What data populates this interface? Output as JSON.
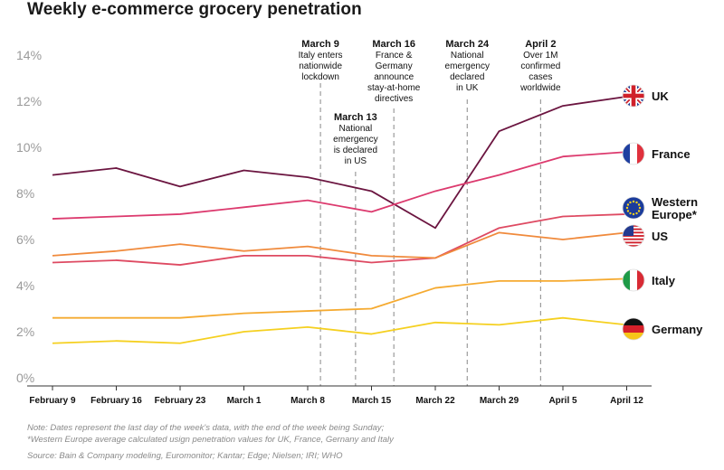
{
  "title": "Weekly e-commerce grocery penetration",
  "notes": {
    "line1": "Note: Dates represent the last day of the week's data, with the end of the week being Sunday;",
    "line2": "*Western Europe average calculated usign penetration values for UK, France, Gernany and Italy",
    "source": "Source: Bain & Company modeling, Euromonitor; Kantar; Edge; Nielsen; IRI; WHO"
  },
  "chart_data": {
    "type": "line",
    "title": "Weekly e-commerce grocery penetration",
    "x": [
      "February 9",
      "February 16",
      "February 23",
      "March 1",
      "March 8",
      "March 15",
      "March 22",
      "March 29",
      "April 5",
      "April 12"
    ],
    "y_ticks": [
      "0%",
      "2%",
      "4%",
      "6%",
      "8%",
      "10%",
      "12%",
      "14%"
    ],
    "ylim": [
      0,
      14
    ],
    "grid": false,
    "series": [
      {
        "name": "UK",
        "color": "#6b1540",
        "flag": "uk-flag-icon",
        "values": [
          8.8,
          9.1,
          8.3,
          9.0,
          8.7,
          8.1,
          6.5,
          10.7,
          11.8,
          12.2
        ]
      },
      {
        "name": "France",
        "color": "#dc3a6e",
        "flag": "france-flag-icon",
        "values": [
          6.9,
          7.0,
          7.1,
          7.4,
          7.7,
          7.2,
          8.1,
          8.8,
          9.6,
          9.8
        ]
      },
      {
        "name": "Western Europe*",
        "color": "#de4a62",
        "flag": "eu-flag-icon",
        "values": [
          5.0,
          5.1,
          4.9,
          5.3,
          5.3,
          5.0,
          5.2,
          6.5,
          7.0,
          7.1
        ]
      },
      {
        "name": "US",
        "color": "#f08a3c",
        "flag": "us-flag-icon",
        "values": [
          5.3,
          5.5,
          5.8,
          5.5,
          5.7,
          5.3,
          5.2,
          6.3,
          6.0,
          6.3
        ]
      },
      {
        "name": "Italy",
        "color": "#f5aa30",
        "flag": "italy-flag-icon",
        "values": [
          2.6,
          2.6,
          2.6,
          2.8,
          2.9,
          3.0,
          3.9,
          4.2,
          4.2,
          4.3
        ]
      },
      {
        "name": "Germany",
        "color": "#f5d020",
        "flag": "germany-flag-icon",
        "values": [
          1.5,
          1.6,
          1.5,
          2.0,
          2.2,
          1.9,
          2.4,
          2.3,
          2.6,
          2.3
        ]
      }
    ],
    "annotations": [
      {
        "title": "March 9",
        "lines": [
          "Italy enters",
          "nationwide",
          "lockdown"
        ],
        "x_date": "March 9"
      },
      {
        "title": "March 13",
        "lines": [
          "National",
          "emergency",
          "is declared",
          "in US"
        ],
        "x_date": "March 13"
      },
      {
        "title": "March 16",
        "lines": [
          "France &",
          "Germany",
          "announce",
          "stay-at-home",
          "directives"
        ],
        "x_date": "March 16"
      },
      {
        "title": "March 24",
        "lines": [
          "National",
          "emergency",
          "declared",
          "in UK"
        ],
        "x_date": "March 24"
      },
      {
        "title": "April 2",
        "lines": [
          "Over 1M",
          "confirmed",
          "cases",
          "worldwide"
        ],
        "x_date": "April 2"
      }
    ]
  }
}
